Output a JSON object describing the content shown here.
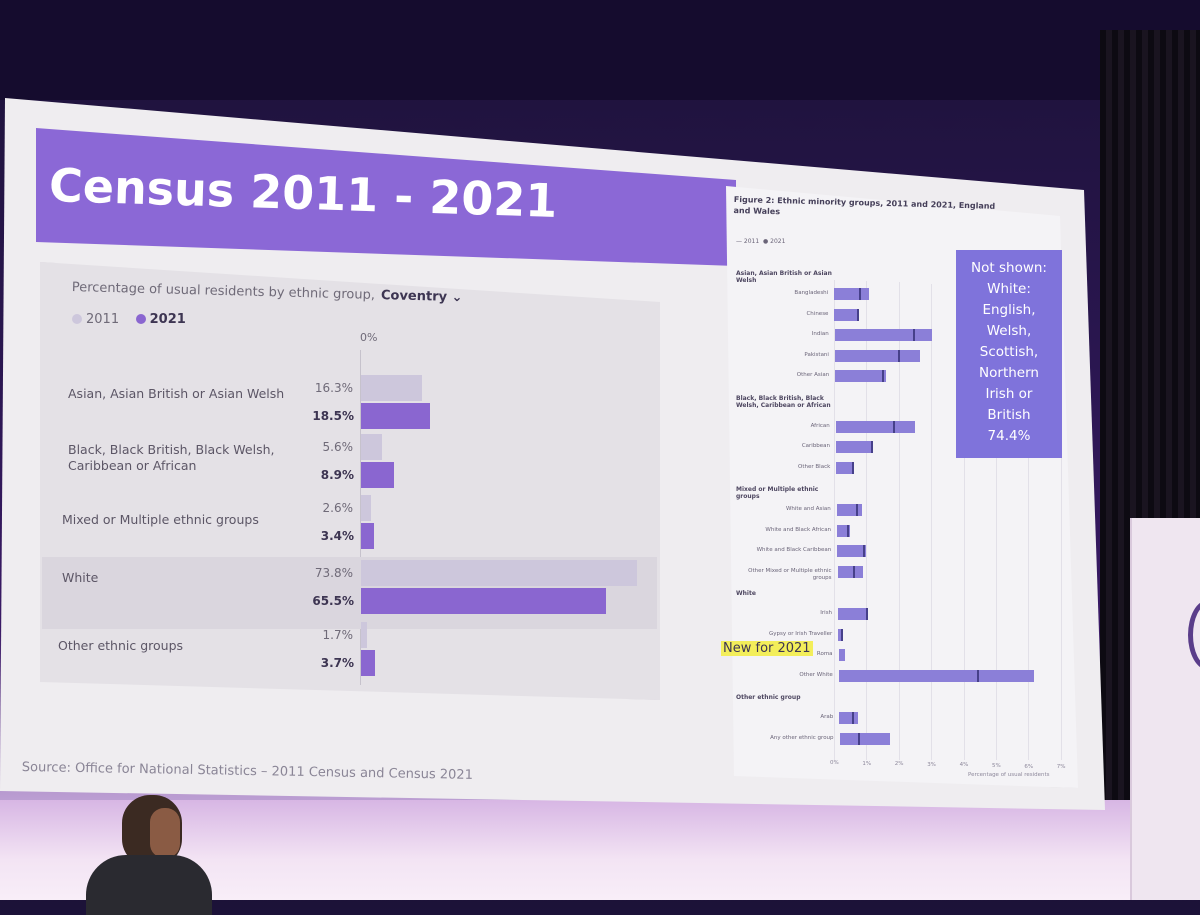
{
  "slide": {
    "title": "Census 2011 - 2021",
    "source": "Source: Office for National Statistics – 2011 Census and Census 2021"
  },
  "chart_data": [
    {
      "type": "bar",
      "title": "Percentage of usual residents by ethnic group,",
      "area_selector": "Coventry",
      "axis_zero_label": "0%",
      "legend": [
        "2011",
        "2021"
      ],
      "colors": {
        "2011": "#cdc7dc",
        "2021": "#8a66d0"
      },
      "categories": [
        "Asian, Asian British or Asian Welsh",
        "Black, Black British, Black Welsh, Caribbean or African",
        "Mixed or Multiple ethnic groups",
        "White",
        "Other ethnic groups"
      ],
      "series": [
        {
          "name": "2011",
          "values": [
            16.3,
            5.6,
            2.6,
            73.8,
            1.7
          ],
          "labels": [
            "16.3%",
            "5.6%",
            "2.6%",
            "73.8%",
            "1.7%"
          ]
        },
        {
          "name": "2021",
          "values": [
            18.5,
            8.9,
            3.4,
            65.5,
            3.7
          ],
          "labels": [
            "18.5%",
            "8.9%",
            "3.4%",
            "65.5%",
            "3.7%"
          ]
        }
      ],
      "xlim": [
        0,
        75
      ]
    },
    {
      "type": "bar",
      "title": "Figure 2: Ethnic minority groups, 2011 and 2021, England and Wales",
      "legend": [
        "2011",
        "2021"
      ],
      "xlabel": "Percentage of usual residents",
      "xticks": [
        "0%",
        "1%",
        "2%",
        "3%",
        "4%",
        "5%",
        "6%",
        "7%"
      ],
      "xlim": [
        0,
        7
      ],
      "groups": [
        {
          "name": "Asian, Asian British or Asian Welsh",
          "items": [
            {
              "label": "Bangladeshi",
              "v2021": 1.1,
              "v2011": 0.8
            },
            {
              "label": "Chinese",
              "v2021": 0.7,
              "v2011": 0.7
            },
            {
              "label": "Indian",
              "v2021": 3.1,
              "v2011": 2.5
            },
            {
              "label": "Pakistani",
              "v2021": 2.7,
              "v2011": 2.0
            },
            {
              "label": "Other Asian",
              "v2021": 1.6,
              "v2011": 1.5
            }
          ]
        },
        {
          "name": "Black, Black British, Black Welsh, Caribbean or African",
          "items": [
            {
              "label": "African",
              "v2021": 2.5,
              "v2011": 1.8
            },
            {
              "label": "Caribbean",
              "v2021": 1.1,
              "v2011": 1.1
            },
            {
              "label": "Other Black",
              "v2021": 0.5,
              "v2011": 0.5
            }
          ]
        },
        {
          "name": "Mixed or Multiple ethnic groups",
          "items": [
            {
              "label": "White and Asian",
              "v2021": 0.8,
              "v2011": 0.6
            },
            {
              "label": "White and Black African",
              "v2021": 0.4,
              "v2011": 0.3
            },
            {
              "label": "White and Black Caribbean",
              "v2021": 0.9,
              "v2011": 0.8
            },
            {
              "label": "Other Mixed or Multiple ethnic groups",
              "v2021": 0.8,
              "v2011": 0.5
            }
          ]
        },
        {
          "name": "White",
          "items": [
            {
              "label": "Irish",
              "v2021": 0.9,
              "v2011": 0.9
            },
            {
              "label": "Gypsy or Irish Traveller",
              "v2021": 0.1,
              "v2011": 0.1
            },
            {
              "label": "Roma",
              "v2021": 0.2,
              "v2011": null
            },
            {
              "label": "Other White",
              "v2021": 6.2,
              "v2011": 4.4
            }
          ]
        },
        {
          "name": "Other ethnic group",
          "items": [
            {
              "label": "Arab",
              "v2021": 0.6,
              "v2011": 0.4
            },
            {
              "label": "Any other ethnic group",
              "v2021": 1.6,
              "v2011": 0.6
            }
          ]
        }
      ],
      "note": [
        "Not shown:",
        "White:",
        "English,",
        "Welsh,",
        "Scottish,",
        "Northern",
        "Irish or",
        "British",
        "74.4%"
      ],
      "annotation": "New for 2021"
    }
  ]
}
